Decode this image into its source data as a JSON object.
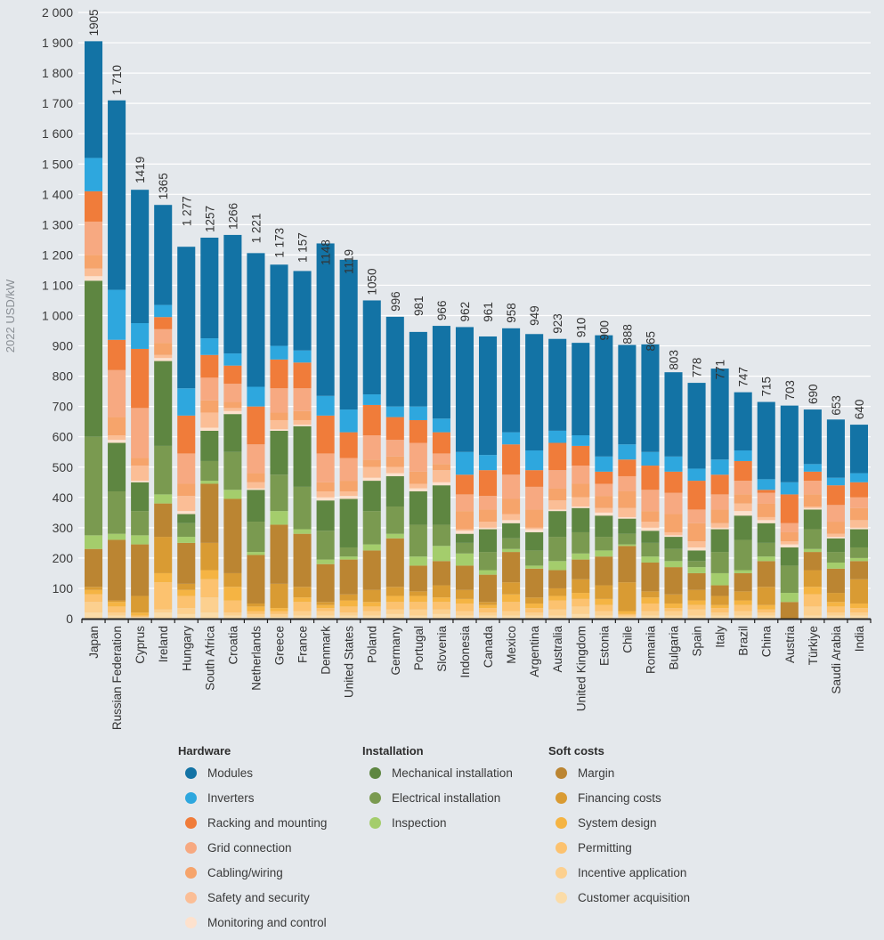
{
  "chart_data": {
    "type": "bar",
    "stacked": true,
    "title": "",
    "xlabel": "",
    "ylabel": "2022 USD/kW",
    "ylim": [
      0,
      2000
    ],
    "yticks": [
      0,
      100,
      200,
      300,
      400,
      500,
      600,
      700,
      800,
      900,
      1000,
      1100,
      1200,
      1300,
      1400,
      1500,
      1600,
      1700,
      1800,
      1900,
      2000
    ],
    "ytick_labels": [
      "0",
      "100",
      "200",
      "300",
      "400",
      "500",
      "600",
      "700",
      "800",
      "900",
      "1 000",
      "1 100",
      "1 200",
      "1 300",
      "1 400",
      "1 500",
      "1 600",
      "1 700",
      "1 800",
      "1 900",
      "2 000"
    ],
    "grid": true,
    "legend_position": "bottom",
    "categories": [
      "Japan",
      "Russian Federation",
      "Cyprus",
      "Ireland",
      "Hungary",
      "South Africa",
      "Croatia",
      "Netherlands",
      "Greece",
      "France",
      "Denmark",
      "United States",
      "Poland",
      "Germany",
      "Portugal",
      "Slovenia",
      "Indonesia",
      "Canada",
      "Mexico",
      "Argentina",
      "Australia",
      "United Kingdom",
      "Estonia",
      "Chile",
      "Romania",
      "Bulgaria",
      "Spain",
      "Italy",
      "Brazil",
      "China",
      "Austria",
      "Türkiye",
      "Saudi Arabia",
      "India"
    ],
    "totals": [
      1905,
      1710,
      1419,
      1365,
      1277,
      1257,
      1266,
      1221,
      1173,
      1157,
      1148,
      1119,
      1050,
      996,
      981,
      966,
      962,
      961,
      958,
      949,
      923,
      910,
      900,
      888,
      865,
      803,
      778,
      771,
      747,
      715,
      703,
      690,
      653,
      640
    ],
    "total_labels": [
      "1905",
      "1 710",
      "1419",
      "1365",
      "1 277",
      "1257",
      "1266",
      "1 221",
      "1 173",
      "1 157",
      "1148",
      "1119",
      "1050",
      "996",
      "981",
      "966",
      "962",
      "961",
      "958",
      "949",
      "923",
      "910",
      "900",
      "888",
      "865",
      "803",
      "778",
      "771",
      "747",
      "715",
      "703",
      "690",
      "653",
      "640"
    ],
    "legend_groups": [
      {
        "title": "Hardware",
        "items": [
          "Modules",
          "Inverters",
          "Racking and mounting",
          "Grid connection",
          "Cabling/wiring",
          "Safety and security",
          "Monitoring and control"
        ]
      },
      {
        "title": "Installation",
        "items": [
          "Mechanical installation",
          "Electrical installation",
          "Inspection"
        ]
      },
      {
        "title": "Soft costs",
        "items": [
          "Margin",
          "Financing costs",
          "System design",
          "Permitting",
          "Incentive application",
          "Customer acquisition"
        ]
      }
    ],
    "stack_order_bottom_to_top": [
      "Customer acquisition",
      "Incentive application",
      "Permitting",
      "System design",
      "Financing costs",
      "Margin",
      "Inspection",
      "Electrical installation",
      "Mechanical installation",
      "Monitoring and control",
      "Safety and security",
      "Cabling/wiring",
      "Grid connection",
      "Racking and mounting",
      "Inverters",
      "Modules"
    ],
    "series": [
      {
        "name": "Customer acquisition",
        "color": "#fbdca8",
        "values": [
          20,
          10,
          5,
          20,
          15,
          20,
          10,
          5,
          5,
          10,
          10,
          10,
          10,
          15,
          10,
          15,
          10,
          10,
          10,
          10,
          10,
          15,
          10,
          5,
          10,
          10,
          10,
          10,
          10,
          10,
          0,
          10,
          10,
          10
        ]
      },
      {
        "name": "Incentive application",
        "color": "#fcd08f",
        "values": [
          35,
          10,
          0,
          10,
          20,
          50,
          10,
          10,
          10,
          15,
          15,
          10,
          15,
          15,
          20,
          15,
          15,
          10,
          15,
          10,
          20,
          25,
          15,
          5,
          15,
          15,
          20,
          10,
          15,
          10,
          0,
          30,
          10,
          10
        ]
      },
      {
        "name": "Permitting",
        "color": "#fcc26f",
        "values": [
          25,
          20,
          5,
          90,
          40,
          60,
          40,
          10,
          10,
          30,
          10,
          20,
          15,
          25,
          25,
          25,
          25,
          15,
          30,
          15,
          30,
          25,
          20,
          5,
          25,
          10,
          15,
          15,
          20,
          10,
          0,
          40,
          20,
          15
        ]
      },
      {
        "name": "System design",
        "color": "#f5b443",
        "values": [
          15,
          15,
          10,
          30,
          20,
          30,
          45,
          15,
          10,
          15,
          10,
          20,
          15,
          20,
          20,
          15,
          15,
          10,
          25,
          15,
          15,
          20,
          20,
          10,
          20,
          15,
          15,
          10,
          15,
          15,
          0,
          25,
          15,
          15
        ]
      },
      {
        "name": "Financing costs",
        "color": "#d99b33",
        "values": [
          10,
          5,
          55,
          120,
          20,
          90,
          45,
          10,
          80,
          35,
          10,
          20,
          40,
          30,
          15,
          40,
          30,
          10,
          40,
          20,
          25,
          45,
          45,
          95,
          20,
          30,
          35,
          30,
          30,
          60,
          0,
          55,
          30,
          80
        ]
      },
      {
        "name": "Margin",
        "color": "#bb8532",
        "values": [
          125,
          200,
          170,
          110,
          135,
          195,
          245,
          160,
          195,
          175,
          125,
          115,
          130,
          160,
          85,
          80,
          80,
          90,
          100,
          95,
          60,
          65,
          95,
          120,
          95,
          90,
          55,
          35,
          60,
          85,
          55,
          60,
          80,
          60
        ]
      },
      {
        "name": "Inspection",
        "color": "#a4cd6c",
        "values": [
          45,
          20,
          30,
          30,
          20,
          10,
          30,
          10,
          45,
          15,
          15,
          10,
          20,
          15,
          30,
          50,
          40,
          15,
          10,
          10,
          30,
          20,
          20,
          5,
          20,
          20,
          20,
          40,
          10,
          15,
          30,
          10,
          20,
          10
        ]
      },
      {
        "name": "Electrical installation",
        "color": "#7a9a50",
        "values": [
          325,
          140,
          80,
          160,
          45,
          65,
          125,
          100,
          120,
          140,
          95,
          30,
          110,
          90,
          105,
          70,
          35,
          60,
          35,
          50,
          80,
          70,
          45,
          35,
          45,
          40,
          20,
          70,
          100,
          45,
          90,
          65,
          35,
          35
        ]
      },
      {
        "name": "Mechanical installation",
        "color": "#5e8641",
        "values": [
          515,
          160,
          95,
          280,
          30,
          100,
          125,
          105,
          145,
          200,
          100,
          160,
          100,
          100,
          110,
          130,
          30,
          75,
          50,
          60,
          85,
          80,
          70,
          50,
          40,
          40,
          35,
          75,
          80,
          65,
          60,
          65,
          45,
          60
        ]
      },
      {
        "name": "Monitoring and control",
        "color": "#fde1cd",
        "values": [
          15,
          10,
          5,
          10,
          10,
          10,
          10,
          5,
          5,
          5,
          10,
          10,
          10,
          10,
          10,
          10,
          10,
          5,
          10,
          10,
          5,
          5,
          10,
          5,
          10,
          5,
          10,
          5,
          15,
          10,
          10,
          5,
          5,
          5
        ]
      },
      {
        "name": "Safety and security",
        "color": "#fbbe96",
        "values": [
          25,
          15,
          50,
          10,
          50,
          50,
          10,
          20,
          30,
          15,
          20,
          15,
          35,
          20,
          15,
          40,
          5,
          20,
          20,
          5,
          30,
          30,
          15,
          30,
          20,
          10,
          20,
          15,
          25,
          10,
          10,
          5,
          10,
          25
        ]
      },
      {
        "name": "Cabling/wiring",
        "color": "#f6a46b",
        "values": [
          45,
          60,
          25,
          40,
          40,
          40,
          20,
          30,
          25,
          30,
          30,
          35,
          25,
          35,
          40,
          20,
          60,
          40,
          50,
          60,
          40,
          45,
          40,
          55,
          35,
          60,
          60,
          45,
          30,
          45,
          30,
          40,
          40,
          40
        ]
      },
      {
        "name": "Grid connection",
        "color": "#f7a981",
        "values": [
          110,
          155,
          165,
          45,
          100,
          75,
          60,
          95,
          80,
          75,
          95,
          75,
          80,
          55,
          95,
          35,
          55,
          45,
          80,
          75,
          60,
          60,
          40,
          50,
          70,
          70,
          45,
          50,
          45,
          35,
          30,
          45,
          55,
          35
        ]
      },
      {
        "name": "Racking and mounting",
        "color": "#f07c3a",
        "values": [
          100,
          100,
          195,
          40,
          125,
          75,
          60,
          125,
          95,
          85,
          125,
          85,
          100,
          75,
          75,
          70,
          65,
          85,
          100,
          55,
          90,
          65,
          40,
          55,
          80,
          70,
          95,
          65,
          65,
          10,
          95,
          30,
          65,
          50
        ]
      },
      {
        "name": "Inverters",
        "color": "#2ea7de",
        "values": [
          110,
          165,
          85,
          40,
          90,
          55,
          40,
          65,
          45,
          40,
          65,
          75,
          35,
          35,
          45,
          45,
          75,
          50,
          40,
          65,
          40,
          35,
          50,
          50,
          45,
          50,
          40,
          50,
          35,
          35,
          40,
          25,
          25,
          30
        ]
      },
      {
        "name": "Modules",
        "color": "#1373a5",
        "values": [
          385,
          625,
          440,
          330,
          467,
          332,
          391,
          441,
          268,
          262,
          503,
          494,
          310,
          296,
          246,
          306,
          412,
          391,
          343,
          384,
          303,
          305,
          400,
          328,
          355,
          278,
          283,
          300,
          192,
          255,
          253,
          180,
          192,
          160
        ]
      }
    ]
  }
}
